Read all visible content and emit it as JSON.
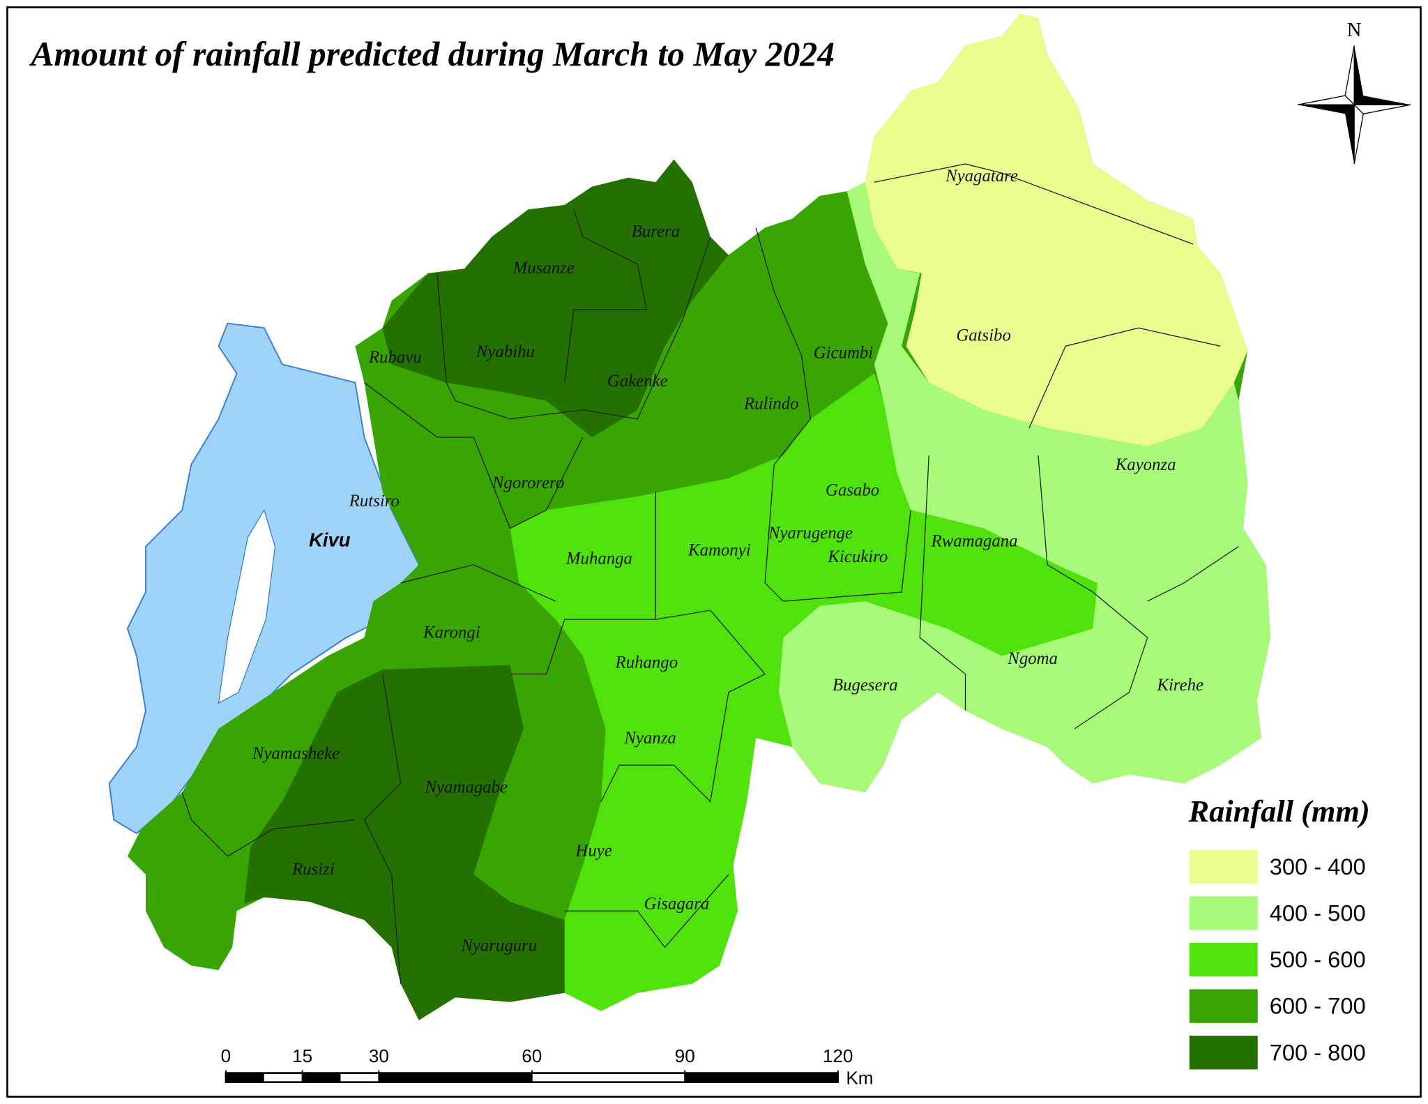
{
  "title": "Amount of rainfall predicted during March to May 2024",
  "north_label": "N",
  "lake_label": "Kivu",
  "districts": [
    "Nyagatare",
    "Burera",
    "Musanze",
    "Nyabihu",
    "Rubavu",
    "Gakenke",
    "Gicumbi",
    "Gatsibo",
    "Rulindo",
    "Ngororero",
    "Rutsiro",
    "Gasabo",
    "Kayonza",
    "Muhanga",
    "Kamonyi",
    "Nyarugenge",
    "Kicukiro",
    "Rwamagana",
    "Karongi",
    "Ruhango",
    "Ngoma",
    "Bugesera",
    "Kirehe",
    "Nyanza",
    "Nyamasheke",
    "Nyamagabe",
    "Huye",
    "Rusizi",
    "Gisagara",
    "Nyaruguru"
  ],
  "legend": {
    "title": "Rainfall (mm)",
    "items": [
      {
        "label": "300 - 400",
        "color": "#ebfd8f"
      },
      {
        "label": "400 - 500",
        "color": "#a7fb79"
      },
      {
        "label": "500 - 600",
        "color": "#4fe30b"
      },
      {
        "label": "600 - 700",
        "color": "#38a503"
      },
      {
        "label": "700 - 800",
        "color": "#247000"
      }
    ]
  },
  "scale_bar": {
    "ticks": [
      0,
      15,
      30,
      60,
      90,
      120
    ],
    "unit": "Km"
  }
}
